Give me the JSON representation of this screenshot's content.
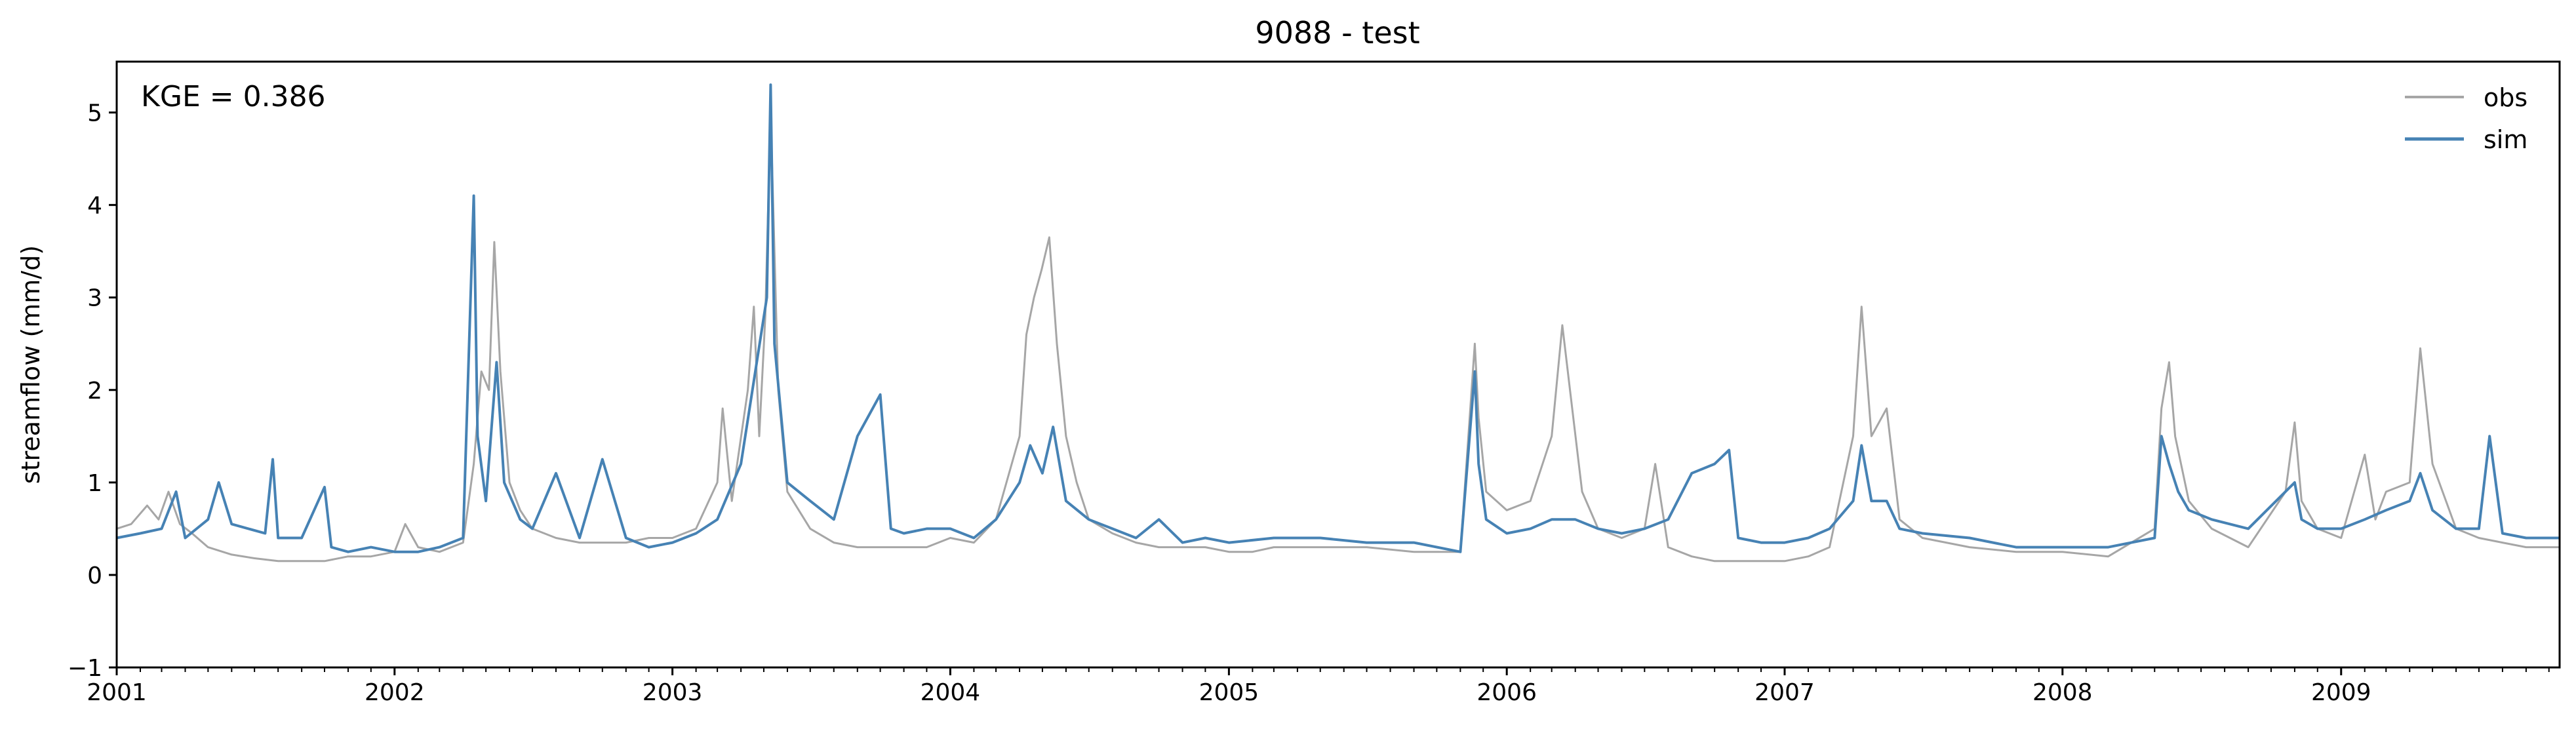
{
  "chart_data": {
    "type": "line",
    "title": "9088 - test",
    "xlabel": "",
    "ylabel": "streamflow (mm/d)",
    "annotation": "KGE = 0.386",
    "xlim": [
      "2001-01-01",
      "2009-10-15"
    ],
    "ylim": [
      -1,
      5.55
    ],
    "x_tick_labels": [
      "2001",
      "2002",
      "2003",
      "2004",
      "2005",
      "2006",
      "2007",
      "2008",
      "2009"
    ],
    "y_ticks": [
      -1,
      0,
      1,
      2,
      3,
      4,
      5
    ],
    "y_tick_labels": [
      "−1",
      "0",
      "1",
      "2",
      "3",
      "4",
      "5"
    ],
    "legend_position": "top-right",
    "grid": false,
    "series": [
      {
        "name": "obs",
        "color": "#a6a6a6",
        "points": [
          [
            "2001-01-01",
            0.5
          ],
          [
            "2001-01-20",
            0.55
          ],
          [
            "2001-02-10",
            0.75
          ],
          [
            "2001-02-25",
            0.6
          ],
          [
            "2001-03-10",
            0.9
          ],
          [
            "2001-03-25",
            0.55
          ],
          [
            "2001-04-10",
            0.45
          ],
          [
            "2001-05-01",
            0.3
          ],
          [
            "2001-06-01",
            0.22
          ],
          [
            "2001-07-01",
            0.18
          ],
          [
            "2001-08-01",
            0.15
          ],
          [
            "2001-09-01",
            0.15
          ],
          [
            "2001-10-01",
            0.15
          ],
          [
            "2001-11-01",
            0.2
          ],
          [
            "2001-12-01",
            0.2
          ],
          [
            "2002-01-01",
            0.25
          ],
          [
            "2002-01-15",
            0.55
          ],
          [
            "2002-02-01",
            0.3
          ],
          [
            "2002-03-01",
            0.25
          ],
          [
            "2002-04-01",
            0.35
          ],
          [
            "2002-04-15",
            1.2
          ],
          [
            "2002-04-25",
            2.2
          ],
          [
            "2002-05-05",
            2.0
          ],
          [
            "2002-05-12",
            3.6
          ],
          [
            "2002-05-20",
            2.2
          ],
          [
            "2002-06-01",
            1.0
          ],
          [
            "2002-06-15",
            0.7
          ],
          [
            "2002-07-01",
            0.5
          ],
          [
            "2002-08-01",
            0.4
          ],
          [
            "2002-09-01",
            0.35
          ],
          [
            "2002-10-01",
            0.35
          ],
          [
            "2002-11-01",
            0.35
          ],
          [
            "2002-12-01",
            0.4
          ],
          [
            "2003-01-01",
            0.4
          ],
          [
            "2003-02-01",
            0.5
          ],
          [
            "2003-03-01",
            1.0
          ],
          [
            "2003-03-08",
            1.8
          ],
          [
            "2003-03-20",
            0.8
          ],
          [
            "2003-04-10",
            2.0
          ],
          [
            "2003-04-18",
            2.9
          ],
          [
            "2003-04-25",
            1.5
          ],
          [
            "2003-05-03",
            2.8
          ],
          [
            "2003-05-10",
            5.0
          ],
          [
            "2003-05-20",
            2.0
          ],
          [
            "2003-06-01",
            0.9
          ],
          [
            "2003-07-01",
            0.5
          ],
          [
            "2003-08-01",
            0.35
          ],
          [
            "2003-09-01",
            0.3
          ],
          [
            "2003-10-01",
            0.3
          ],
          [
            "2003-11-01",
            0.3
          ],
          [
            "2003-12-01",
            0.3
          ],
          [
            "2004-01-01",
            0.4
          ],
          [
            "2004-02-01",
            0.35
          ],
          [
            "2004-03-01",
            0.6
          ],
          [
            "2004-04-01",
            1.5
          ],
          [
            "2004-04-10",
            2.6
          ],
          [
            "2004-04-20",
            3.0
          ],
          [
            "2004-04-30",
            3.3
          ],
          [
            "2004-05-10",
            3.65
          ],
          [
            "2004-05-20",
            2.5
          ],
          [
            "2004-06-01",
            1.5
          ],
          [
            "2004-06-15",
            1.0
          ],
          [
            "2004-07-01",
            0.6
          ],
          [
            "2004-08-01",
            0.45
          ],
          [
            "2004-09-01",
            0.35
          ],
          [
            "2004-10-01",
            0.3
          ],
          [
            "2004-11-01",
            0.3
          ],
          [
            "2004-12-01",
            0.3
          ],
          [
            "2005-01-01",
            0.25
          ],
          [
            "2005-02-01",
            0.25
          ],
          [
            "2005-03-01",
            0.3
          ],
          [
            "2005-05-01",
            0.3
          ],
          [
            "2005-07-01",
            0.3
          ],
          [
            "2005-09-01",
            0.25
          ],
          [
            "2005-11-01",
            0.25
          ],
          [
            "2005-11-20",
            2.5
          ],
          [
            "2005-11-25",
            1.7
          ],
          [
            "2005-12-05",
            0.9
          ],
          [
            "2006-01-01",
            0.7
          ],
          [
            "2006-02-01",
            0.8
          ],
          [
            "2006-03-01",
            1.5
          ],
          [
            "2006-03-15",
            2.7
          ],
          [
            "2006-03-25",
            2.0
          ],
          [
            "2006-04-10",
            0.9
          ],
          [
            "2006-05-01",
            0.5
          ],
          [
            "2006-06-01",
            0.4
          ],
          [
            "2006-07-01",
            0.5
          ],
          [
            "2006-07-15",
            1.2
          ],
          [
            "2006-08-01",
            0.3
          ],
          [
            "2006-09-01",
            0.2
          ],
          [
            "2006-10-01",
            0.15
          ],
          [
            "2006-11-01",
            0.15
          ],
          [
            "2006-12-01",
            0.15
          ],
          [
            "2007-01-01",
            0.15
          ],
          [
            "2007-02-01",
            0.2
          ],
          [
            "2007-03-01",
            0.3
          ],
          [
            "2007-04-01",
            1.5
          ],
          [
            "2007-04-12",
            2.9
          ],
          [
            "2007-04-25",
            1.5
          ],
          [
            "2007-05-15",
            1.8
          ],
          [
            "2007-06-01",
            0.6
          ],
          [
            "2007-07-01",
            0.4
          ],
          [
            "2007-09-01",
            0.3
          ],
          [
            "2007-11-01",
            0.25
          ],
          [
            "2008-01-01",
            0.25
          ],
          [
            "2008-03-01",
            0.2
          ],
          [
            "2008-05-01",
            0.5
          ],
          [
            "2008-05-10",
            1.8
          ],
          [
            "2008-05-20",
            2.3
          ],
          [
            "2008-05-28",
            1.5
          ],
          [
            "2008-06-15",
            0.8
          ],
          [
            "2008-07-15",
            0.5
          ],
          [
            "2008-09-01",
            0.3
          ],
          [
            "2008-10-20",
            0.9
          ],
          [
            "2008-11-01",
            1.65
          ],
          [
            "2008-11-10",
            0.8
          ],
          [
            "2008-12-01",
            0.5
          ],
          [
            "2009-01-01",
            0.4
          ],
          [
            "2009-02-01",
            1.3
          ],
          [
            "2009-02-15",
            0.6
          ],
          [
            "2009-03-01",
            0.9
          ],
          [
            "2009-04-01",
            1.0
          ],
          [
            "2009-04-15",
            2.45
          ],
          [
            "2009-05-01",
            1.2
          ],
          [
            "2009-06-01",
            0.5
          ],
          [
            "2009-07-01",
            0.4
          ],
          [
            "2009-08-01",
            0.35
          ],
          [
            "2009-09-01",
            0.3
          ],
          [
            "2009-10-15",
            0.3
          ]
        ]
      },
      {
        "name": "sim",
        "color": "#4682b4",
        "points": [
          [
            "2001-01-01",
            0.4
          ],
          [
            "2001-02-01",
            0.45
          ],
          [
            "2001-03-01",
            0.5
          ],
          [
            "2001-03-20",
            0.9
          ],
          [
            "2001-04-01",
            0.4
          ],
          [
            "2001-05-01",
            0.6
          ],
          [
            "2001-05-15",
            1.0
          ],
          [
            "2001-06-01",
            0.55
          ],
          [
            "2001-07-15",
            0.45
          ],
          [
            "2001-07-25",
            1.25
          ],
          [
            "2001-08-01",
            0.4
          ],
          [
            "2001-09-01",
            0.4
          ],
          [
            "2001-10-01",
            0.95
          ],
          [
            "2001-10-10",
            0.3
          ],
          [
            "2001-11-01",
            0.25
          ],
          [
            "2001-12-01",
            0.3
          ],
          [
            "2002-01-01",
            0.25
          ],
          [
            "2002-02-01",
            0.25
          ],
          [
            "2002-03-01",
            0.3
          ],
          [
            "2002-04-01",
            0.4
          ],
          [
            "2002-04-15",
            4.1
          ],
          [
            "2002-04-20",
            1.5
          ],
          [
            "2002-05-01",
            0.8
          ],
          [
            "2002-05-15",
            2.3
          ],
          [
            "2002-05-25",
            1.0
          ],
          [
            "2002-06-15",
            0.6
          ],
          [
            "2002-07-01",
            0.5
          ],
          [
            "2002-08-01",
            1.1
          ],
          [
            "2002-09-01",
            0.4
          ],
          [
            "2002-10-01",
            1.25
          ],
          [
            "2002-11-01",
            0.4
          ],
          [
            "2002-12-01",
            0.3
          ],
          [
            "2003-01-01",
            0.35
          ],
          [
            "2003-02-01",
            0.45
          ],
          [
            "2003-03-01",
            0.6
          ],
          [
            "2003-04-01",
            1.2
          ],
          [
            "2003-05-05",
            3.0
          ],
          [
            "2003-05-10",
            5.3
          ],
          [
            "2003-05-15",
            2.5
          ],
          [
            "2003-06-01",
            1.0
          ],
          [
            "2003-07-01",
            0.8
          ],
          [
            "2003-08-01",
            0.6
          ],
          [
            "2003-09-01",
            1.5
          ],
          [
            "2003-10-01",
            1.95
          ],
          [
            "2003-10-15",
            0.5
          ],
          [
            "2003-11-01",
            0.45
          ],
          [
            "2003-12-01",
            0.5
          ],
          [
            "2004-01-01",
            0.5
          ],
          [
            "2004-02-01",
            0.4
          ],
          [
            "2004-03-01",
            0.6
          ],
          [
            "2004-04-01",
            1.0
          ],
          [
            "2004-04-15",
            1.4
          ],
          [
            "2004-05-01",
            1.1
          ],
          [
            "2004-05-15",
            1.6
          ],
          [
            "2004-06-01",
            0.8
          ],
          [
            "2004-07-01",
            0.6
          ],
          [
            "2004-08-01",
            0.5
          ],
          [
            "2004-09-01",
            0.4
          ],
          [
            "2004-10-01",
            0.6
          ],
          [
            "2004-11-01",
            0.35
          ],
          [
            "2004-12-01",
            0.4
          ],
          [
            "2005-01-01",
            0.35
          ],
          [
            "2005-03-01",
            0.4
          ],
          [
            "2005-05-01",
            0.4
          ],
          [
            "2005-07-01",
            0.35
          ],
          [
            "2005-09-01",
            0.35
          ],
          [
            "2005-11-01",
            0.25
          ],
          [
            "2005-11-20",
            2.2
          ],
          [
            "2005-11-25",
            1.2
          ],
          [
            "2005-12-05",
            0.6
          ],
          [
            "2006-01-01",
            0.45
          ],
          [
            "2006-02-01",
            0.5
          ],
          [
            "2006-03-01",
            0.6
          ],
          [
            "2006-04-01",
            0.6
          ],
          [
            "2006-05-01",
            0.5
          ],
          [
            "2006-06-01",
            0.45
          ],
          [
            "2006-07-01",
            0.5
          ],
          [
            "2006-08-01",
            0.6
          ],
          [
            "2006-09-01",
            1.1
          ],
          [
            "2006-10-01",
            1.2
          ],
          [
            "2006-10-20",
            1.35
          ],
          [
            "2006-11-01",
            0.4
          ],
          [
            "2006-12-01",
            0.35
          ],
          [
            "2007-01-01",
            0.35
          ],
          [
            "2007-02-01",
            0.4
          ],
          [
            "2007-03-01",
            0.5
          ],
          [
            "2007-04-01",
            0.8
          ],
          [
            "2007-04-12",
            1.4
          ],
          [
            "2007-04-25",
            0.8
          ],
          [
            "2007-05-15",
            0.8
          ],
          [
            "2007-06-01",
            0.5
          ],
          [
            "2007-07-01",
            0.45
          ],
          [
            "2007-09-01",
            0.4
          ],
          [
            "2007-11-01",
            0.3
          ],
          [
            "2008-01-01",
            0.3
          ],
          [
            "2008-03-01",
            0.3
          ],
          [
            "2008-05-01",
            0.4
          ],
          [
            "2008-05-10",
            1.5
          ],
          [
            "2008-05-20",
            1.2
          ],
          [
            "2008-06-01",
            0.9
          ],
          [
            "2008-06-15",
            0.7
          ],
          [
            "2008-07-15",
            0.6
          ],
          [
            "2008-09-01",
            0.5
          ],
          [
            "2008-11-01",
            1.0
          ],
          [
            "2008-11-10",
            0.6
          ],
          [
            "2008-12-01",
            0.5
          ],
          [
            "2009-01-01",
            0.5
          ],
          [
            "2009-02-01",
            0.6
          ],
          [
            "2009-03-01",
            0.7
          ],
          [
            "2009-04-01",
            0.8
          ],
          [
            "2009-04-15",
            1.1
          ],
          [
            "2009-05-01",
            0.7
          ],
          [
            "2009-06-01",
            0.5
          ],
          [
            "2009-07-01",
            0.5
          ],
          [
            "2009-07-15",
            1.5
          ],
          [
            "2009-08-01",
            0.45
          ],
          [
            "2009-09-01",
            0.4
          ],
          [
            "2009-10-15",
            0.4
          ]
        ]
      }
    ]
  }
}
